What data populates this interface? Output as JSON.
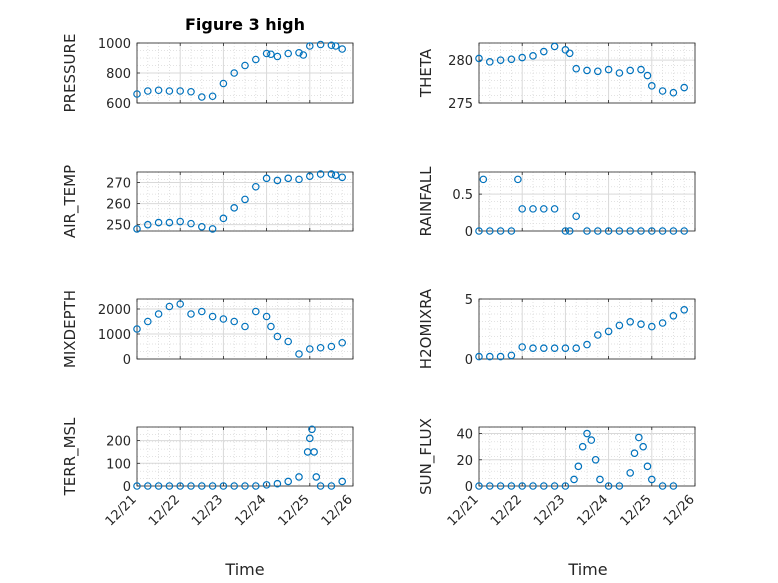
{
  "figure": {
    "title": "Figure 3 high",
    "x_axis_label": "Time",
    "marker_color": "#0072BD",
    "grid_color": "#d9d9d9",
    "x_tick_labels": [
      "12/21",
      "12/22",
      "12/23",
      "12/24",
      "12/25",
      "12/26"
    ]
  },
  "chart_data": [
    {
      "type": "scatter",
      "id": "pressure",
      "ylabel": "PRESSURE",
      "title": "Figure 3 high",
      "xlabel": "",
      "xlim": [
        0,
        5
      ],
      "ylim": [
        600,
        1000
      ],
      "yticks": [
        "1000",
        "800",
        "600"
      ],
      "ytick_values": [
        1000,
        800,
        600
      ],
      "xtick_labels_visible": false,
      "x": [
        0,
        0.25,
        0.5,
        0.75,
        1.0,
        1.25,
        1.5,
        1.75,
        2.0,
        2.25,
        2.5,
        2.75,
        3.0,
        3.1,
        3.25,
        3.5,
        3.75,
        3.85,
        4.0,
        4.25,
        4.5,
        4.6,
        4.75
      ],
      "y": [
        660,
        680,
        685,
        680,
        680,
        675,
        640,
        645,
        730,
        800,
        850,
        890,
        930,
        925,
        910,
        930,
        935,
        920,
        980,
        990,
        985,
        980,
        960
      ]
    },
    {
      "type": "scatter",
      "id": "theta",
      "ylabel": "THETA",
      "xlabel": "",
      "xlim": [
        0,
        5
      ],
      "ylim": [
        275,
        282
      ],
      "yticks": [
        "280",
        "275"
      ],
      "ytick_values": [
        280,
        275
      ],
      "xtick_labels_visible": false,
      "x": [
        0,
        0.25,
        0.5,
        0.75,
        1.0,
        1.25,
        1.5,
        1.75,
        2.0,
        2.1,
        2.25,
        2.5,
        2.75,
        3.0,
        3.25,
        3.5,
        3.75,
        3.9,
        4.0,
        4.25,
        4.5,
        4.75
      ],
      "y": [
        280.2,
        279.8,
        280.0,
        280.1,
        280.3,
        280.5,
        281.0,
        281.6,
        281.2,
        280.8,
        279.0,
        278.8,
        278.7,
        278.9,
        278.5,
        278.8,
        278.9,
        278.2,
        277.0,
        276.4,
        276.2,
        276.8
      ]
    },
    {
      "type": "scatter",
      "id": "air_temp",
      "ylabel": "AIR_TEMP",
      "xlabel": "",
      "xlim": [
        0,
        5
      ],
      "ylim": [
        247,
        275
      ],
      "yticks": [
        "270",
        "260",
        "250"
      ],
      "ytick_values": [
        270,
        260,
        250
      ],
      "xtick_labels_visible": false,
      "x": [
        0,
        0.25,
        0.5,
        0.75,
        1.0,
        1.25,
        1.5,
        1.75,
        2.0,
        2.25,
        2.5,
        2.75,
        3.0,
        3.25,
        3.5,
        3.75,
        4.0,
        4.25,
        4.5,
        4.6,
        4.75
      ],
      "y": [
        248,
        250,
        251,
        251,
        251.5,
        250.5,
        249,
        248,
        253,
        258,
        262,
        268,
        272,
        271,
        272,
        271.5,
        273,
        274,
        274,
        273.5,
        272.5
      ]
    },
    {
      "type": "scatter",
      "id": "rainfall",
      "ylabel": "RAINFALL",
      "xlabel": "",
      "xlim": [
        0,
        5
      ],
      "ylim": [
        0,
        0.8
      ],
      "yticks": [
        "0.5",
        "0"
      ],
      "ytick_values": [
        0.5,
        0
      ],
      "xtick_labels_visible": false,
      "x": [
        0,
        0.1,
        0.25,
        0.5,
        0.75,
        0.9,
        1.0,
        1.25,
        1.5,
        1.75,
        2.0,
        2.1,
        2.25,
        2.5,
        2.75,
        3.0,
        3.25,
        3.5,
        3.75,
        4.0,
        4.25,
        4.5,
        4.75
      ],
      "y": [
        0,
        0.7,
        0,
        0,
        0,
        0.7,
        0.3,
        0.3,
        0.3,
        0.3,
        0,
        0,
        0.2,
        0,
        0,
        0,
        0,
        0,
        0,
        0,
        0,
        0,
        0
      ]
    },
    {
      "type": "scatter",
      "id": "mixdepth",
      "ylabel": "MIXDEPTH",
      "xlabel": "",
      "xlim": [
        0,
        5
      ],
      "ylim": [
        0,
        2400
      ],
      "yticks": [
        "2000",
        "1000",
        "0"
      ],
      "ytick_values": [
        2000,
        1000,
        0
      ],
      "xtick_labels_visible": false,
      "x": [
        0,
        0.25,
        0.5,
        0.75,
        1.0,
        1.25,
        1.5,
        1.75,
        2.0,
        2.25,
        2.5,
        2.75,
        3.0,
        3.1,
        3.25,
        3.5,
        3.75,
        4.0,
        4.25,
        4.5,
        4.75
      ],
      "y": [
        1200,
        1500,
        1800,
        2100,
        2200,
        1800,
        1900,
        1700,
        1600,
        1500,
        1300,
        1900,
        1700,
        1300,
        900,
        700,
        200,
        400,
        450,
        500,
        650
      ]
    },
    {
      "type": "scatter",
      "id": "h2omixra",
      "ylabel": "H2OMIXRA",
      "xlabel": "",
      "xlim": [
        0,
        5
      ],
      "ylim": [
        0,
        5
      ],
      "yticks": [
        "5",
        "0"
      ],
      "ytick_values": [
        5,
        0
      ],
      "xtick_labels_visible": false,
      "x": [
        0,
        0.25,
        0.5,
        0.75,
        1.0,
        1.25,
        1.5,
        1.75,
        2.0,
        2.25,
        2.5,
        2.75,
        3.0,
        3.25,
        3.5,
        3.75,
        4.0,
        4.25,
        4.5,
        4.75
      ],
      "y": [
        0.2,
        0.2,
        0.2,
        0.3,
        1.0,
        0.9,
        0.9,
        0.9,
        0.9,
        0.9,
        1.2,
        2.0,
        2.3,
        2.8,
        3.1,
        2.9,
        2.7,
        3.0,
        3.6,
        4.1
      ]
    },
    {
      "type": "scatter",
      "id": "terr_msl",
      "ylabel": "TERR_MSL",
      "xlabel": "Time",
      "xlim": [
        0,
        5
      ],
      "ylim": [
        0,
        260
      ],
      "yticks": [
        "200",
        "100",
        "0"
      ],
      "ytick_values": [
        200,
        100,
        0
      ],
      "xtick_labels_visible": true,
      "x": [
        0,
        0.25,
        0.5,
        0.75,
        1.0,
        1.25,
        1.5,
        1.75,
        2.0,
        2.25,
        2.5,
        2.75,
        3.0,
        3.25,
        3.5,
        3.75,
        3.95,
        4.0,
        4.05,
        4.1,
        4.15,
        4.25,
        4.5,
        4.75
      ],
      "y": [
        0,
        0,
        0,
        0,
        0,
        0,
        0,
        0,
        0,
        0,
        0,
        0,
        5,
        10,
        20,
        40,
        150,
        210,
        250,
        150,
        40,
        0,
        0,
        20
      ]
    },
    {
      "type": "scatter",
      "id": "sun_flux",
      "ylabel": "SUN_FLUX",
      "xlabel": "Time",
      "xlim": [
        0,
        5
      ],
      "ylim": [
        0,
        45
      ],
      "yticks": [
        "40",
        "20",
        "0"
      ],
      "ytick_values": [
        40,
        20,
        0
      ],
      "xtick_labels_visible": true,
      "x": [
        0,
        0.25,
        0.5,
        0.75,
        1.0,
        1.25,
        1.5,
        1.75,
        2.0,
        2.2,
        2.3,
        2.4,
        2.5,
        2.6,
        2.7,
        2.8,
        3.0,
        3.25,
        3.5,
        3.6,
        3.7,
        3.8,
        3.9,
        4.0,
        4.25,
        4.5
      ],
      "y": [
        0,
        0,
        0,
        0,
        0,
        0,
        0,
        0,
        0,
        5,
        15,
        30,
        40,
        35,
        20,
        5,
        0,
        0,
        10,
        25,
        37,
        30,
        15,
        5,
        0,
        0
      ]
    }
  ]
}
